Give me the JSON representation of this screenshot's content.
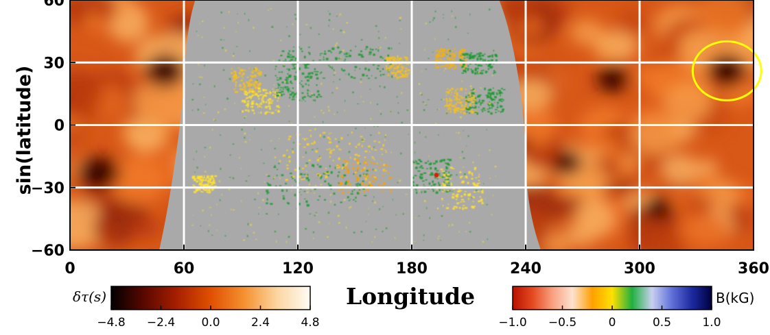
{
  "chart_data": {
    "type": "heatmap",
    "title": "",
    "xlabel": "Longitude",
    "ylabel": "sin(latitude)",
    "xlim": [
      0,
      360
    ],
    "ylim": [
      -60,
      60
    ],
    "xticks": [
      0,
      60,
      120,
      180,
      240,
      300,
      360
    ],
    "yticks": [
      60,
      30,
      0,
      -30,
      -60
    ],
    "xtick_labels": [
      "0",
      "60",
      "120",
      "180",
      "240",
      "300",
      "360"
    ],
    "ytick_labels": [
      "60",
      "30",
      "0",
      "−30",
      "−60"
    ],
    "grid": true,
    "grid_color": "#ffffff",
    "farside_region": {
      "quantity_label": "δτ(s)",
      "lon_ranges": [
        [
          0,
          60
        ],
        [
          240,
          360
        ]
      ],
      "colormap": [
        "#000000",
        "#5a0800",
        "#a82000",
        "#e05000",
        "#f59030",
        "#fbd6a0",
        "#fffcf5"
      ]
    },
    "nearside_region": {
      "quantity_label": "B(kG)",
      "lon_range": [
        60,
        240
      ],
      "background_color": "#a9a9a9",
      "colormap": [
        "#b81000",
        "#e44a20",
        "#f9a080",
        "#fde2d0",
        "#ffa000",
        "#ffe000",
        "#20b040",
        "#c8d0f0",
        "#6070d8",
        "#1c2aa0",
        "#000040"
      ]
    },
    "highlight_circle": {
      "lon": 346,
      "lat": 26,
      "color": "#ffff00"
    },
    "colorbars": [
      {
        "label": "δτ(s)",
        "range": [
          -4.8,
          4.8
        ],
        "tick_values": [
          -4.8,
          -2.4,
          0.0,
          2.4,
          4.8
        ],
        "tick_labels": [
          "−4.8",
          "−2.4",
          "0.0",
          "2.4",
          "4.8"
        ]
      },
      {
        "label": "B(kG)",
        "range": [
          -1.0,
          1.0
        ],
        "tick_values": [
          -1.0,
          -0.5,
          0,
          0.5,
          1.0
        ],
        "tick_labels": [
          "−1.0",
          "−0.5",
          "0",
          "0.5",
          "1.0"
        ]
      }
    ]
  }
}
